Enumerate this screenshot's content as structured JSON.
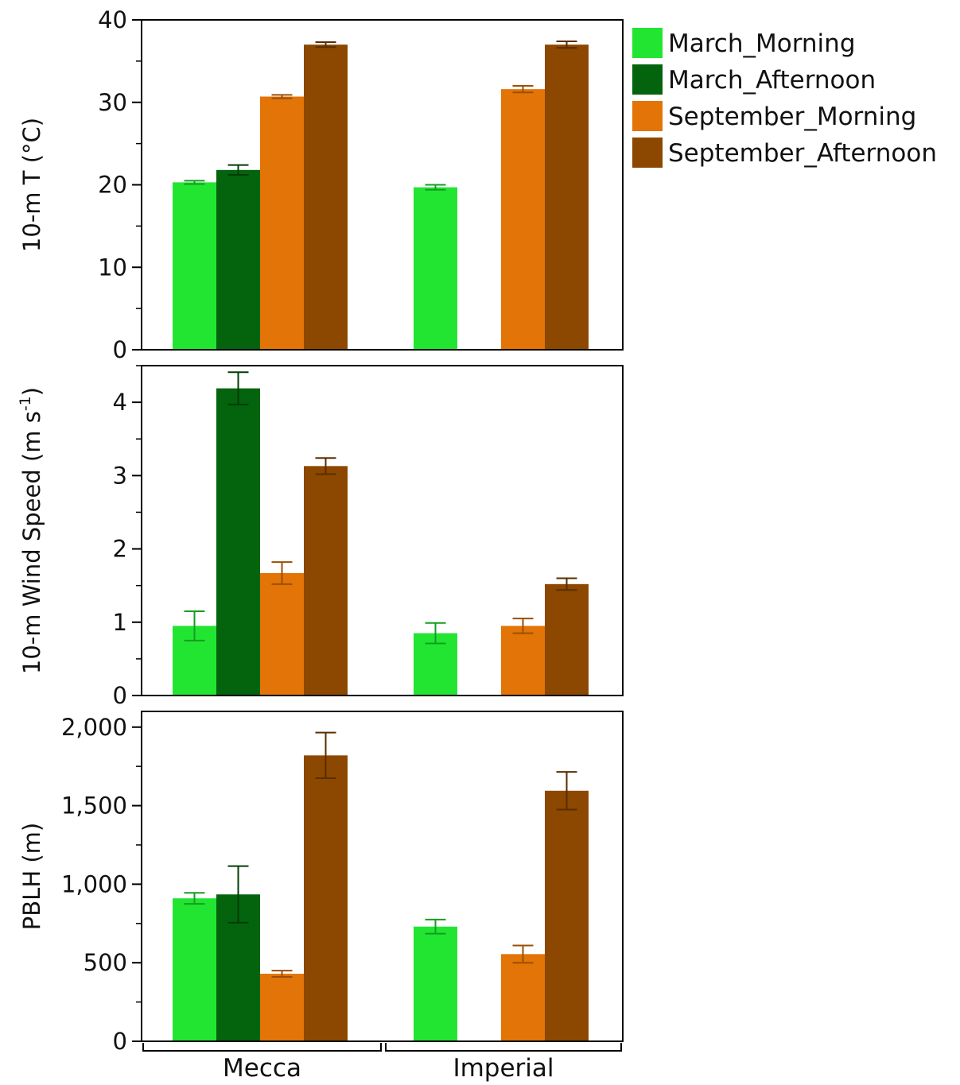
{
  "chart_data": [
    {
      "type": "bar",
      "categories": [
        "Mecca",
        "Imperial"
      ],
      "ylabel": "10-m T (°C)",
      "ylim": [
        0,
        40
      ],
      "yticks": [
        "0",
        "10",
        "20",
        "30",
        "40"
      ],
      "series": [
        {
          "name": "March_Morning",
          "values": [
            20.3,
            19.7
          ],
          "errors": [
            0.2,
            0.3
          ]
        },
        {
          "name": "March_Afternoon",
          "values": [
            21.8,
            null
          ],
          "errors": [
            0.6,
            null
          ]
        },
        {
          "name": "September_Morning",
          "values": [
            30.7,
            31.6
          ],
          "errors": [
            0.2,
            0.4
          ]
        },
        {
          "name": "September_Afternoon",
          "values": [
            37.0,
            37.0
          ],
          "errors": [
            0.3,
            0.4
          ]
        }
      ]
    },
    {
      "type": "bar",
      "categories": [
        "Mecca",
        "Imperial"
      ],
      "ylabel": "10-m Wind Speed (m s",
      "ylabel_sup": "-1",
      "ylabel_end": ")",
      "ylim": [
        0,
        4.5
      ],
      "yticks": [
        "0",
        "1",
        "2",
        "3",
        "4"
      ],
      "series": [
        {
          "name": "March_Morning",
          "values": [
            0.95,
            0.85
          ],
          "errors": [
            0.2,
            0.14
          ]
        },
        {
          "name": "March_Afternoon",
          "values": [
            4.19,
            null
          ],
          "errors": [
            0.22,
            null
          ]
        },
        {
          "name": "September_Morning",
          "values": [
            1.67,
            0.95
          ],
          "errors": [
            0.15,
            0.1
          ]
        },
        {
          "name": "September_Afternoon",
          "values": [
            3.13,
            1.52
          ],
          "errors": [
            0.11,
            0.08
          ]
        }
      ]
    },
    {
      "type": "bar",
      "categories": [
        "Mecca",
        "Imperial"
      ],
      "ylabel": "PBLH (m)",
      "ylim": [
        0,
        2100
      ],
      "yticks": [
        "0",
        "500",
        "1,000",
        "1,500",
        "2,000"
      ],
      "series": [
        {
          "name": "March_Morning",
          "values": [
            910,
            730
          ],
          "errors": [
            35,
            45
          ]
        },
        {
          "name": "March_Afternoon",
          "values": [
            935,
            null
          ],
          "errors": [
            180,
            null
          ]
        },
        {
          "name": "September_Morning",
          "values": [
            430,
            555
          ],
          "errors": [
            20,
            55
          ]
        },
        {
          "name": "September_Afternoon",
          "values": [
            1820,
            1595
          ],
          "errors": [
            145,
            120
          ]
        }
      ]
    }
  ],
  "legend": {
    "placement": "top-right, outside",
    "items": [
      {
        "label": "March_Morning",
        "color": "#22e532"
      },
      {
        "label": "March_Afternoon",
        "color": "#03640d"
      },
      {
        "label": "September_Morning",
        "color": "#e37408"
      },
      {
        "label": "September_Afternoon",
        "color": "#8c4800"
      }
    ]
  },
  "colors": {
    "March_Morning": "#22e532",
    "March_Afternoon": "#03640d",
    "September_Morning": "#e37408",
    "September_Afternoon": "#8c4800",
    "March_Morning_err": "#139e1f",
    "March_Afternoon_err": "#013d07",
    "September_Morning_err": "#9a4f05",
    "September_Afternoon_err": "#5a2e00"
  }
}
